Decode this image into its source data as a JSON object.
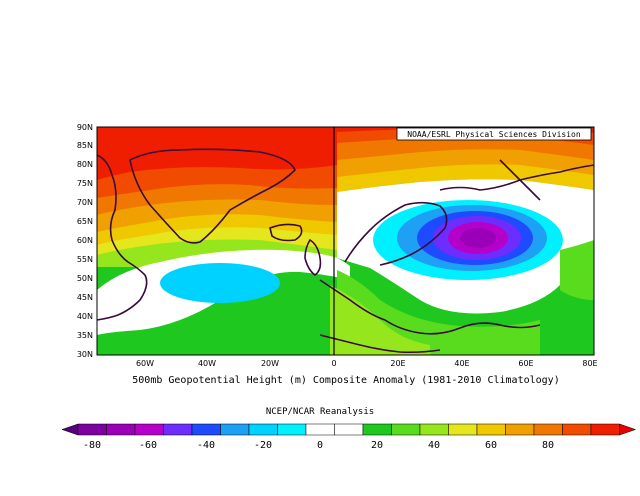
{
  "header": {
    "credit": "NOAA/ESRL Physical Sciences Division"
  },
  "map": {
    "lat_labels": [
      "90N",
      "85N",
      "80N",
      "75N",
      "70N",
      "65N",
      "60N",
      "55N",
      "50N",
      "45N",
      "40N",
      "35N",
      "30N"
    ],
    "lon_labels": [
      "60W",
      "40W",
      "20W",
      "0",
      "20E",
      "40E",
      "60E",
      "80E"
    ],
    "caption": "500mb Geopotential Height (m) Composite Anomaly (1981-2010 Climatology)",
    "source_label": "NCEP/NCAR Reanalysis"
  },
  "colorbar": {
    "labels": [
      "-80",
      "-60",
      "-40",
      "-20",
      "0",
      "20",
      "40",
      "60",
      "80"
    ],
    "colors": [
      "#7d00a0",
      "#9a00b8",
      "#b400c8",
      "#6e2dff",
      "#1e4bff",
      "#1ea0f5",
      "#00d2ff",
      "#00f0ff",
      "#ffffff",
      "#ffffff",
      "#1ec81e",
      "#5adc1e",
      "#96e61e",
      "#e6e61e",
      "#f0c800",
      "#f0a000",
      "#f07800",
      "#f04b00",
      "#f01e00"
    ],
    "low_end_color": "#55007d",
    "high_end_color": "#e60000"
  },
  "chart_data": {
    "type": "heatmap",
    "title": "500mb Geopotential Height (m) Composite Anomaly (1981-2010 Climatology)",
    "subtitle": "NCEP/NCAR Reanalysis",
    "xlim": [
      -80,
      80
    ],
    "ylim": [
      30,
      90
    ],
    "units": "m",
    "levels": [
      -80,
      -70,
      -60,
      -50,
      -40,
      -30,
      -20,
      -10,
      0,
      10,
      20,
      30,
      40,
      50,
      60,
      70,
      80
    ],
    "features": [
      {
        "kind": "high",
        "lon": -45,
        "lat": 82,
        "value": 80
      },
      {
        "kind": "high",
        "lon": 45,
        "lat": 85,
        "value": 70
      },
      {
        "kind": "low",
        "lon": 45,
        "lat": 60,
        "value": -60
      },
      {
        "kind": "low",
        "lon": -35,
        "lat": 48,
        "value": -20
      }
    ]
  }
}
